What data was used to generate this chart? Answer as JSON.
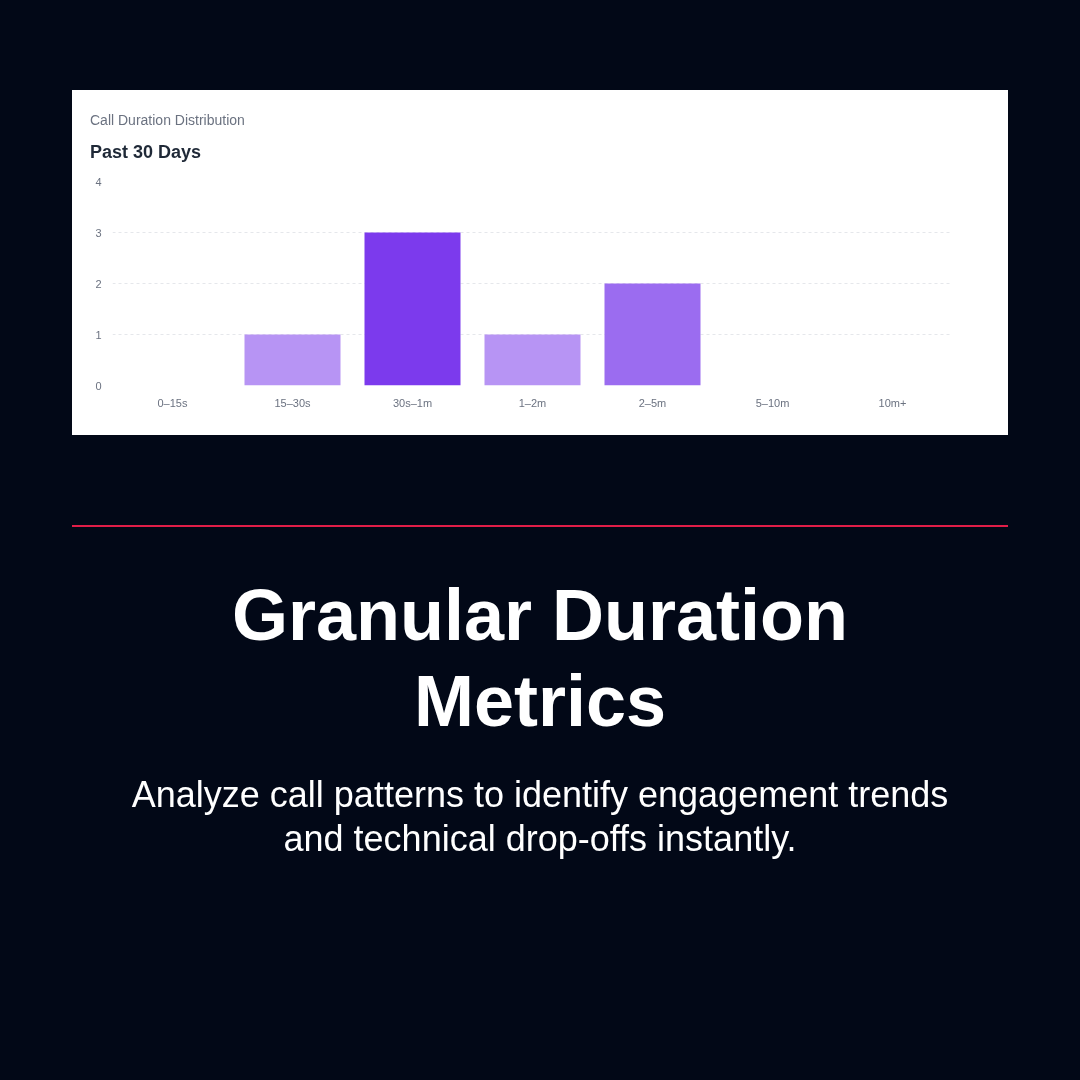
{
  "chart_data": {
    "type": "bar",
    "title": "Call Duration Distribution",
    "subtitle": "Past 30 Days",
    "categories": [
      "0–15s",
      "15–30s",
      "30s–1m",
      "1–2m",
      "2–5m",
      "5–10m",
      "10m+"
    ],
    "values": [
      0,
      1,
      3,
      1,
      2,
      0,
      0
    ],
    "colors": [
      "#b794f4",
      "#b794f4",
      "#7c3aed",
      "#b794f4",
      "#9b6cf0",
      "#b794f4",
      "#b794f4"
    ],
    "ylim": [
      0,
      4
    ],
    "yticks": [
      0,
      1,
      2,
      3,
      4
    ],
    "grid": "y",
    "annotations": [
      "Granular Duration Metrics",
      "Analyze call patterns to identify engagement trends and technical drop-offs instantly."
    ]
  }
}
